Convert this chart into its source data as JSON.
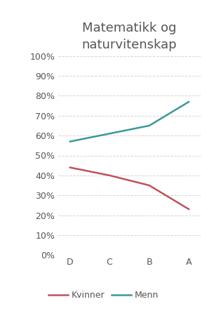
{
  "title": "Matematikk og\nnaturvitenskap",
  "categories": [
    "D",
    "C",
    "B",
    "A"
  ],
  "kvinner": [
    0.44,
    0.4,
    0.35,
    0.23
  ],
  "menn": [
    0.57,
    0.61,
    0.65,
    0.77
  ],
  "kvinner_color": "#c0515a",
  "menn_color": "#3a9999",
  "ylim": [
    0,
    1.0
  ],
  "yticks": [
    0.0,
    0.1,
    0.2,
    0.3,
    0.4,
    0.5,
    0.6,
    0.7,
    0.8,
    0.9,
    1.0
  ],
  "ytick_labels": [
    "0%",
    "10%",
    "20%",
    "30%",
    "40%",
    "50%",
    "60%",
    "70%",
    "80%",
    "90%",
    "100%"
  ],
  "legend_kvinner": "Kvinner",
  "legend_menn": "Menn",
  "title_fontsize": 13,
  "axis_fontsize": 9,
  "legend_fontsize": 9,
  "line_width": 1.8,
  "background_color": "#ffffff",
  "grid_color": "#d0d0d0",
  "text_color": "#555555"
}
